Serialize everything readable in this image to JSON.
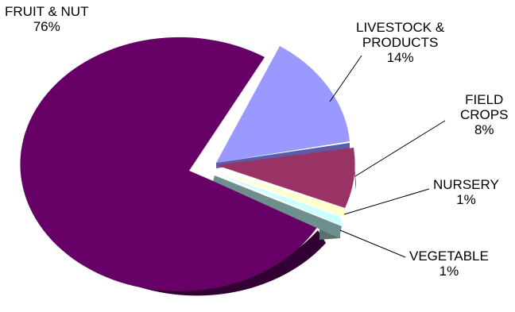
{
  "chart_data": {
    "type": "pie",
    "slices": [
      {
        "label": [
          "FRUIT & NUT"
        ],
        "value": 76,
        "value_label": "76%",
        "color": "#660066"
      },
      {
        "label": [
          "LIVESTOCK &",
          "PRODUCTS"
        ],
        "value": 14,
        "value_label": "14%",
        "color": "#9999ff"
      },
      {
        "label": [
          "FIELD",
          "CROPS"
        ],
        "value": 8,
        "value_label": "8%",
        "color": "#993366"
      },
      {
        "label": [
          "NURSERY"
        ],
        "value": 1,
        "value_label": "1%",
        "color": "#ffffcc"
      },
      {
        "label": [
          "VEGETABLE"
        ],
        "value": 1,
        "value_label": "1%",
        "color": "#ccffff"
      }
    ],
    "style": "3d-exploded"
  }
}
